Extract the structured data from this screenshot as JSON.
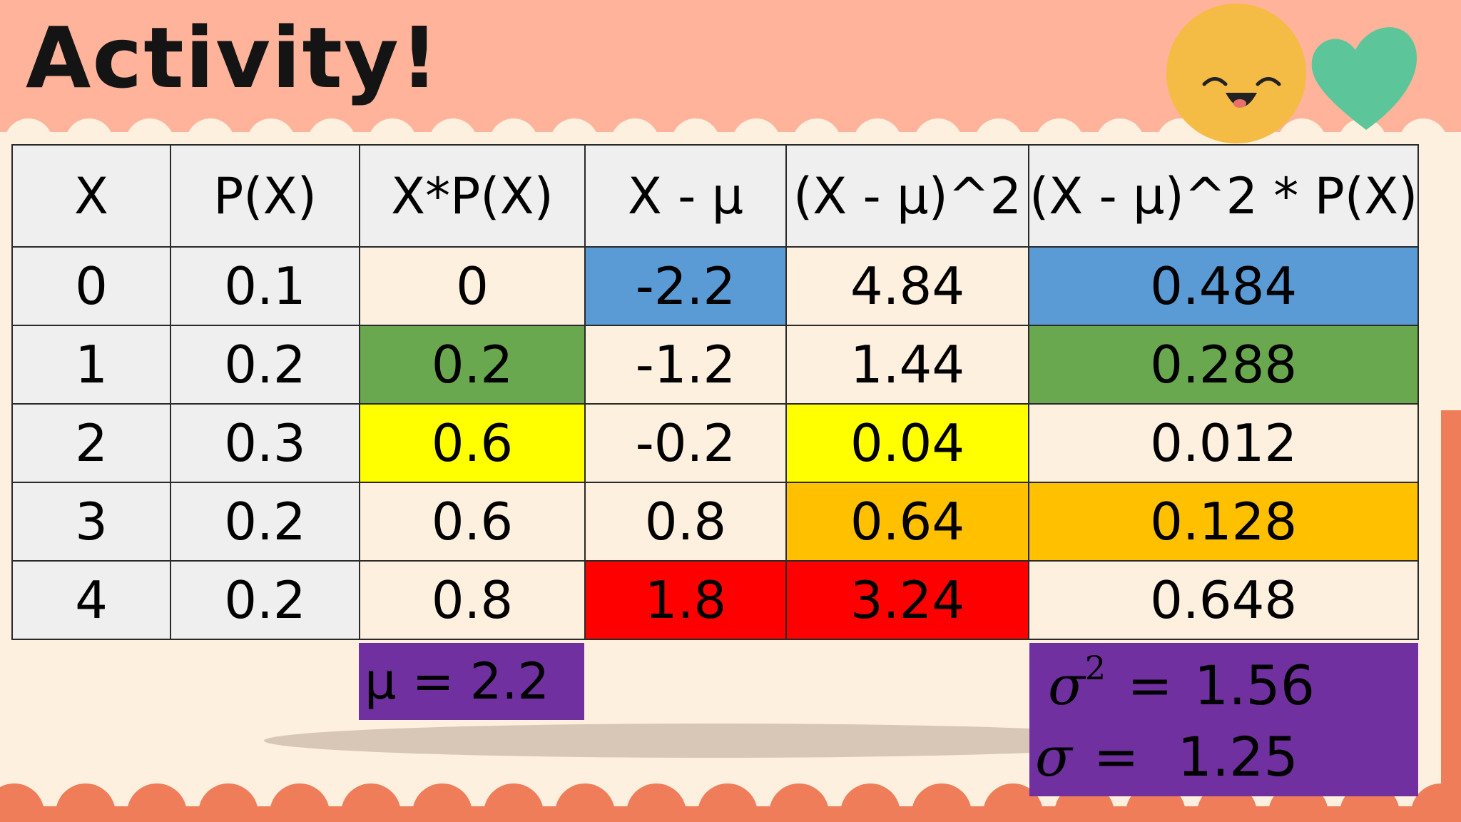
{
  "title": "Activity!",
  "headers": [
    "X",
    "P(X)",
    "X*P(X)",
    "X - μ",
    "(X - μ)^2",
    "(X - μ)^2 * P(X)"
  ],
  "rows": [
    [
      "0",
      "0.1",
      "0",
      "-2.2",
      "4.84",
      "0.484"
    ],
    [
      "1",
      "0.2",
      "0.2",
      "-1.2",
      "1.44",
      "0.288"
    ],
    [
      "2",
      "0.3",
      "0.6",
      "-0.2",
      "0.04",
      "0.012"
    ],
    [
      "3",
      "0.2",
      "0.6",
      "0.8",
      "0.64",
      "0.128"
    ],
    [
      "4",
      "0.2",
      "0.8",
      "1.8",
      "3.24",
      "0.648"
    ]
  ],
  "mean_text": "μ = 2.2",
  "variance": {
    "symbol": "σ",
    "exponent": "2",
    "equals": "=",
    "value": "1.56"
  },
  "std_dev": {
    "symbol": "σ",
    "equals": "=",
    "value": "1.25"
  },
  "colors": {
    "background_top": "#ffb39a",
    "background_main": "#fdf0de",
    "wave_bottom": "#f07d5a",
    "header_cells": "#efefef",
    "blue": "#5b9bd5",
    "green": "#6aa84f",
    "yellow": "#ffff00",
    "orange": "#ffc000",
    "red": "#ff0000",
    "purple": "#7030a0",
    "smiley": "#f4bb45",
    "heart": "#5cc59a"
  },
  "decorations": [
    "smiley-face-icon",
    "heart-icon"
  ]
}
